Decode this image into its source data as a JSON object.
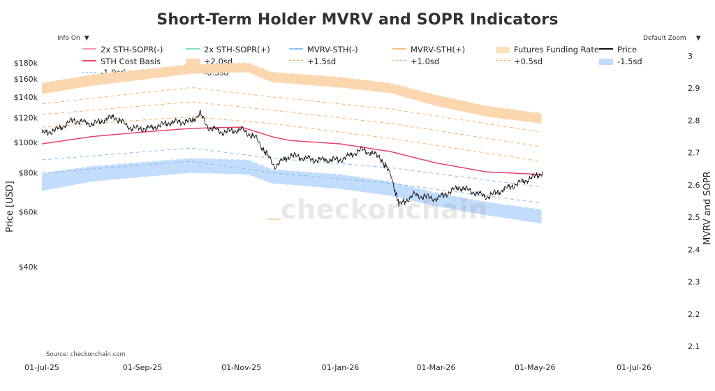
{
  "title": "Short-Term Holder MVRV and SOPR Indicators",
  "controls": {
    "info_label": "Info On",
    "zoom_label": "Default Zoom"
  },
  "source": "Source: checkonchain.com",
  "watermark": "checkonchain",
  "colors": {
    "price": "#111111",
    "cost_basis": "#e8426b",
    "upper_band": "#fbd7b0",
    "lower_band": "#c2dcfb",
    "upper_dash": "#f5a95a",
    "lower_dash": "#7db4ee",
    "sopr_neg": "#f29bb3",
    "sopr_pos": "#7fdcc8",
    "mvrv_neg": "#8cc2ee",
    "mvrv_pos": "#f6c27e",
    "funding": "#fde1bc"
  },
  "legend": [
    [
      {
        "label": "2x STH-SOPR(-)",
        "type": "line",
        "color": "#f29bb3"
      },
      {
        "label": "2x STH-SOPR(+)",
        "type": "line",
        "color": "#7fdcc8"
      },
      {
        "label": "MVRV-STH(-)",
        "type": "line",
        "color": "#8cc2ee"
      },
      {
        "label": "MVRV-STH(+)",
        "type": "line",
        "color": "#f6c27e"
      },
      {
        "label": "Futures Funding Rate",
        "type": "band",
        "color": "#fde1bc"
      },
      {
        "label": "Price",
        "type": "line",
        "color": "#111111"
      }
    ],
    [
      {
        "label": "STH Cost Basis",
        "type": "line",
        "color": "#e8426b"
      },
      {
        "label": "+2.0sd",
        "type": "band",
        "color": "#fbd7b0"
      },
      {
        "label": "+1.5sd",
        "type": "dash",
        "color": "#f5a95a"
      },
      {
        "label": "+1.0sd",
        "type": "dash",
        "color": "#f5a95a"
      },
      {
        "label": "+0.5sd",
        "type": "dash",
        "color": "#f5a95a"
      },
      {
        "label": "-1.5sd",
        "type": "band",
        "color": "#c2dcfb"
      }
    ],
    [
      {
        "label": "-1.0sd",
        "type": "dash",
        "color": "#7db4ee"
      },
      {
        "label": "-0.5sd",
        "type": "dash",
        "color": "#7db4ee"
      }
    ]
  ],
  "chart_data": {
    "type": "line",
    "title": "Short-Term Holder MVRV and SOPR Indicators",
    "ylabel": "Price [USD]",
    "y2label": "MVRV and SOPR",
    "y_scale": "log",
    "y_ticks": [
      {
        "label": "$40k",
        "value": 40000
      },
      {
        "label": "$60k",
        "value": 60000
      },
      {
        "label": "$80k",
        "value": 80000
      },
      {
        "label": "$100k",
        "value": 100000
      },
      {
        "label": "$120k",
        "value": 120000
      },
      {
        "label": "$140k",
        "value": 140000
      },
      {
        "label": "$160k",
        "value": 160000
      },
      {
        "label": "$180k",
        "value": 180000
      }
    ],
    "y2_ticks": [
      "2.1",
      "2.2",
      "2.3",
      "2.4",
      "2.5",
      "2.6",
      "2.7",
      "2.8",
      "2.9",
      "3"
    ],
    "y2_range": [
      2.1,
      3.0
    ],
    "x_ticks": [
      {
        "label": "01-Jul-25",
        "date": "2025-07-01"
      },
      {
        "label": "01-Sep-25",
        "date": "2025-09-01"
      },
      {
        "label": "01-Nov-25",
        "date": "2025-11-01"
      },
      {
        "label": "01-Jan-26",
        "date": "2026-01-01"
      },
      {
        "label": "01-Mar-26",
        "date": "2026-03-01"
      },
      {
        "label": "01-May-26",
        "date": "2026-05-01"
      },
      {
        "label": "01-Jul-26",
        "date": "2026-07-01"
      }
    ],
    "x_range": [
      "2025-07-01",
      "2026-07-01"
    ],
    "series": [
      {
        "name": "Price",
        "x": [
          "2025-07-01",
          "2025-07-10",
          "2025-07-20",
          "2025-08-01",
          "2025-08-14",
          "2025-08-25",
          "2025-09-05",
          "2025-09-18",
          "2025-10-01",
          "2025-10-06",
          "2025-10-11",
          "2025-10-20",
          "2025-11-01",
          "2025-11-10",
          "2025-11-21",
          "2025-12-01",
          "2025-12-15",
          "2026-01-01",
          "2026-01-14",
          "2026-01-25",
          "2026-02-01",
          "2026-02-06",
          "2026-02-15",
          "2026-03-01",
          "2026-03-15",
          "2026-04-01",
          "2026-04-15",
          "2026-05-01",
          "2026-05-05"
        ],
        "y": [
          107000,
          110000,
          118000,
          114500,
          121000,
          111000,
          111000,
          116000,
          117000,
          124000,
          112000,
          108000,
          110000,
          103000,
          84000,
          91000,
          88000,
          88000,
          95000,
          90000,
          78000,
          63000,
          68000,
          66000,
          72000,
          67000,
          72000,
          78000,
          80000
        ]
      },
      {
        "name": "STH Cost Basis",
        "x": [
          "2025-07-01",
          "2025-08-01",
          "2025-09-01",
          "2025-10-01",
          "2025-11-01",
          "2025-11-21",
          "2025-12-01",
          "2026-01-01",
          "2026-02-01",
          "2026-03-01",
          "2026-04-01",
          "2026-05-05"
        ],
        "y": [
          99000,
          104500,
          108000,
          111000,
          112000,
          104000,
          101500,
          99000,
          93500,
          86000,
          80500,
          79000
        ]
      },
      {
        "name": "+2.0sd",
        "x": [
          "2025-07-01",
          "2025-08-01",
          "2025-10-01",
          "2025-11-05",
          "2025-11-20",
          "2026-01-01",
          "2026-02-01",
          "2026-03-01",
          "2026-04-01",
          "2026-05-05"
        ],
        "y_low": [
          143000,
          152000,
          166000,
          168000,
          156000,
          150000,
          144000,
          131000,
          121000,
          115000
        ],
        "y_high": [
          155000,
          165000,
          178000,
          180000,
          168000,
          162000,
          155000,
          142000,
          131000,
          124000
        ]
      },
      {
        "name": "+1.5sd",
        "x": [
          "2025-07-01",
          "2025-10-01",
          "2025-11-20",
          "2026-02-01",
          "2026-05-05"
        ],
        "y": [
          133000,
          150000,
          140000,
          128000,
          108000
        ]
      },
      {
        "name": "+1.0sd",
        "x": [
          "2025-07-01",
          "2025-10-01",
          "2025-11-20",
          "2026-02-01",
          "2026-05-05"
        ],
        "y": [
          123000,
          135000,
          127000,
          115000,
          97000
        ]
      },
      {
        "name": "+0.5sd",
        "x": [
          "2025-07-01",
          "2025-10-01",
          "2025-11-20",
          "2026-02-01",
          "2026-05-05"
        ],
        "y": [
          112000,
          121000,
          115000,
          103000,
          87000
        ]
      },
      {
        "name": "-0.5sd",
        "x": [
          "2025-07-01",
          "2025-10-01",
          "2025-11-20",
          "2026-02-01",
          "2026-05-05"
        ],
        "y": [
          88000,
          96000,
          89000,
          83000,
          72000
        ]
      },
      {
        "name": "-1.0sd",
        "x": [
          "2025-07-01",
          "2025-10-01",
          "2025-11-20",
          "2026-02-01",
          "2026-05-05"
        ],
        "y": [
          80000,
          87000,
          80000,
          74000,
          64000
        ]
      },
      {
        "name": "-1.5sd",
        "x": [
          "2025-07-01",
          "2025-08-01",
          "2025-10-01",
          "2025-11-05",
          "2025-11-20",
          "2026-01-01",
          "2026-02-01",
          "2026-03-01",
          "2026-04-01",
          "2026-05-05"
        ],
        "y_low": [
          70000,
          75000,
          80000,
          79000,
          74000,
          71000,
          67500,
          62500,
          58500,
          55000
        ],
        "y_high": [
          79500,
          84000,
          89000,
          88000,
          82000,
          79000,
          75000,
          69000,
          64500,
          61000
        ]
      }
    ]
  }
}
